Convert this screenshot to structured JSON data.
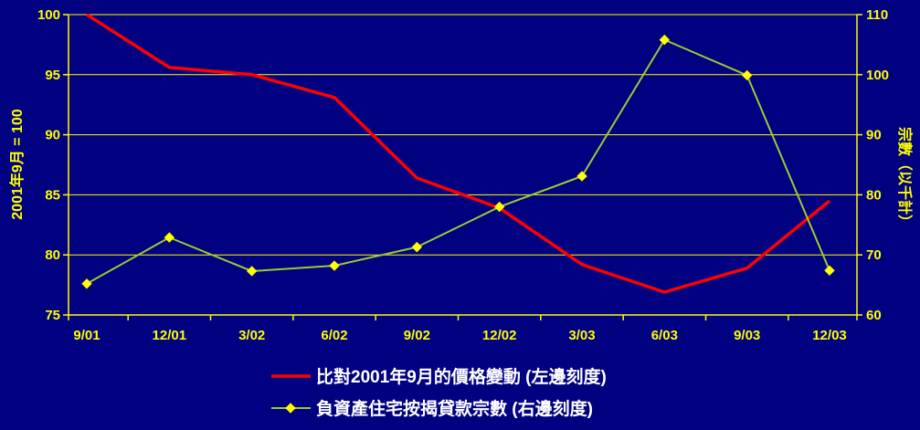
{
  "chart_data": {
    "type": "line",
    "categories": [
      "9/01",
      "12/01",
      "3/02",
      "6/02",
      "9/02",
      "12/02",
      "3/03",
      "6/03",
      "9/03",
      "12/03"
    ],
    "ylabel_left": "2001年9月 = 100",
    "ylabel_right": "宗數（以千計）",
    "ylim_left": [
      75,
      100
    ],
    "yticks_left": [
      "75",
      "80",
      "85",
      "90",
      "95",
      "100"
    ],
    "ylim_right": [
      60,
      110
    ],
    "yticks_right": [
      "60",
      "70",
      "80",
      "90",
      "100",
      "110"
    ],
    "grid": true,
    "legend_position": "bottom",
    "series": [
      {
        "name": "比對2001年9月的價格變動 (左邊刻度)",
        "axis": "left",
        "color": "#ff0000",
        "marker": "none",
        "values": [
          100,
          95.6,
          95.0,
          93.1,
          86.4,
          83.9,
          79.2,
          76.9,
          78.9,
          84.5
        ]
      },
      {
        "name": "負資產住宅按揭貸款宗數 (右邊刻度)",
        "axis": "right",
        "color": "#9acd32",
        "marker": "diamond",
        "marker_color": "#ffff00",
        "values": [
          65.2,
          72.9,
          67.3,
          68.2,
          71.3,
          78.0,
          83.1,
          105.8,
          99.9,
          67.4
        ]
      }
    ]
  },
  "colors": {
    "background": "#000080",
    "axis_text": "#ffff00",
    "gridline": "#ffff00",
    "legend_text": "#ffffff"
  }
}
